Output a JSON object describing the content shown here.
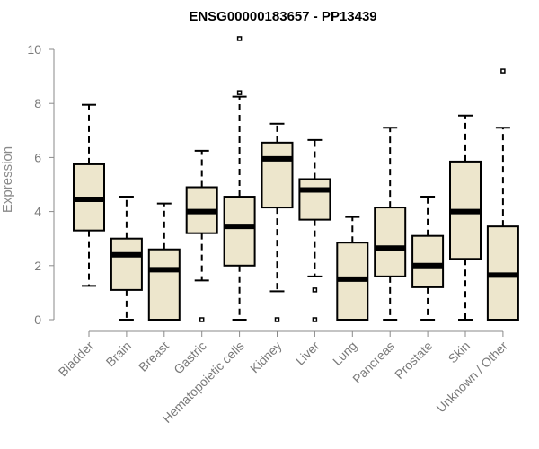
{
  "chart_data": {
    "type": "boxplot",
    "title": "ENSG00000183657 - PP13439",
    "xlabel": "",
    "ylabel": "Expression",
    "ylim": [
      0,
      10
    ],
    "yticks": [
      "0",
      "2",
      "4",
      "6",
      "8",
      "10"
    ],
    "box_fill": "#ede6cc",
    "grid": false,
    "categories": [
      "Bladder",
      "Brain",
      "Breast",
      "Gastric",
      "Hematopoietic cells",
      "Kidney",
      "Liver",
      "Lung",
      "Pancreas",
      "Prostate",
      "Skin",
      "Unknown / Other"
    ],
    "boxes": [
      {
        "category": "Bladder",
        "whisker_low": 1.25,
        "q1": 3.3,
        "median": 4.45,
        "q3": 5.75,
        "whisker_high": 7.95,
        "outliers": []
      },
      {
        "category": "Brain",
        "whisker_low": 0.0,
        "q1": 1.1,
        "median": 2.4,
        "q3": 3.0,
        "whisker_high": 4.55,
        "outliers": []
      },
      {
        "category": "Breast",
        "whisker_low": 0.0,
        "q1": 0.0,
        "median": 1.85,
        "q3": 2.6,
        "whisker_high": 4.3,
        "outliers": []
      },
      {
        "category": "Gastric",
        "whisker_low": 1.45,
        "q1": 3.2,
        "median": 4.0,
        "q3": 4.9,
        "whisker_high": 6.25,
        "outliers": [
          0.0
        ]
      },
      {
        "category": "Hematopoietic cells",
        "whisker_low": 0.0,
        "q1": 2.0,
        "median": 3.45,
        "q3": 4.55,
        "whisker_high": 8.25,
        "outliers": [
          8.4,
          10.4
        ]
      },
      {
        "category": "Kidney",
        "whisker_low": 1.05,
        "q1": 4.15,
        "median": 5.95,
        "q3": 6.55,
        "whisker_high": 7.25,
        "outliers": [
          0.0
        ]
      },
      {
        "category": "Liver",
        "whisker_low": 1.6,
        "q1": 3.7,
        "median": 4.8,
        "q3": 5.2,
        "whisker_high": 6.65,
        "outliers": [
          1.1,
          0.0
        ]
      },
      {
        "category": "Lung",
        "whisker_low": 0.0,
        "q1": 0.0,
        "median": 1.5,
        "q3": 2.85,
        "whisker_high": 3.8,
        "outliers": []
      },
      {
        "category": "Pancreas",
        "whisker_low": 0.0,
        "q1": 1.6,
        "median": 2.65,
        "q3": 4.15,
        "whisker_high": 7.1,
        "outliers": []
      },
      {
        "category": "Prostate",
        "whisker_low": 0.0,
        "q1": 1.2,
        "median": 2.0,
        "q3": 3.1,
        "whisker_high": 4.55,
        "outliers": []
      },
      {
        "category": "Skin",
        "whisker_low": 0.0,
        "q1": 2.25,
        "median": 4.0,
        "q3": 5.85,
        "whisker_high": 7.55,
        "outliers": []
      },
      {
        "category": "Unknown / Other",
        "whisker_low": 0.0,
        "q1": 0.0,
        "median": 1.65,
        "q3": 3.45,
        "whisker_high": 7.1,
        "outliers": [
          9.2
        ]
      }
    ]
  }
}
